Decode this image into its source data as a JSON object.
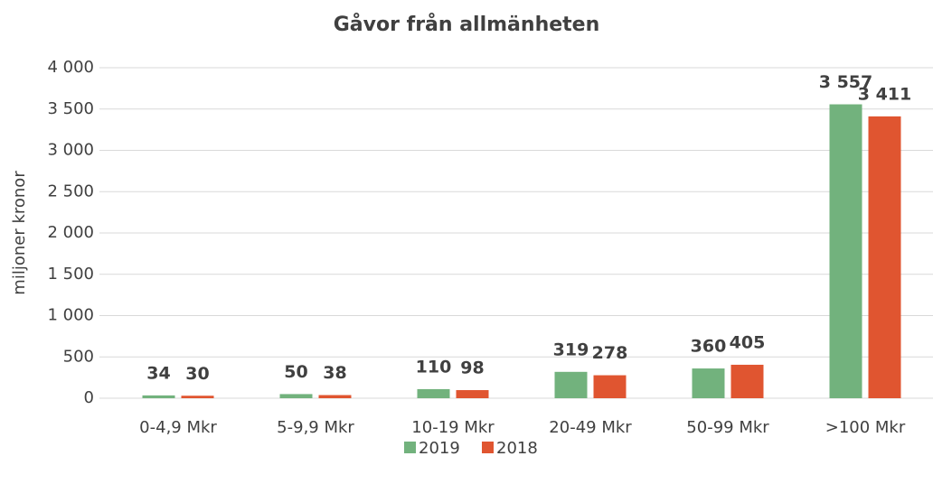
{
  "chart_data": {
    "type": "bar",
    "title": "Gåvor från allmänheten",
    "y_label": "miljoner kronor",
    "categories": [
      "0-4,9 Mkr",
      "5-9,9 Mkr",
      "10-19 Mkr",
      "20-49 Mkr",
      "50-99 Mkr",
      ">100 Mkr"
    ],
    "series": [
      {
        "name": "2019",
        "color": "#72b27d",
        "values": [
          34,
          50,
          110,
          319,
          360,
          3557
        ],
        "value_labels": [
          "34",
          "50",
          "110",
          "319",
          "360",
          "3 557"
        ]
      },
      {
        "name": "2018",
        "color": "#e05530",
        "values": [
          30,
          38,
          98,
          278,
          405,
          3411
        ],
        "value_labels": [
          "30",
          "38",
          "98",
          "278",
          "405",
          "3 411"
        ]
      }
    ],
    "ylim": [
      0,
      4000
    ],
    "yticks": [
      0,
      500,
      {
        "value": 1000,
        "label": "1 000"
      },
      {
        "value": 1500,
        "label": "1 500"
      },
      {
        "value": 2000,
        "label": "2 000"
      },
      {
        "value": 2500,
        "label": "2 500"
      },
      {
        "value": 3000,
        "label": "3 000"
      },
      {
        "value": 3500,
        "label": "3 500"
      },
      {
        "value": 4000,
        "label": "4 000"
      }
    ],
    "grid": true,
    "legend": "bottom"
  }
}
